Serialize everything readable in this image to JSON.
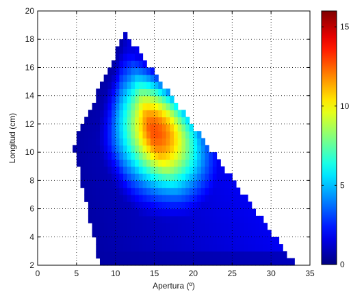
{
  "chart_data": {
    "type": "heatmap",
    "xlabel": "Apertura (º)",
    "ylabel": "Longitud (cm)",
    "xlim": [
      0,
      35
    ],
    "ylim": [
      2,
      20
    ],
    "x_ticks": [
      "0",
      "5",
      "10",
      "15",
      "20",
      "25",
      "30",
      "35"
    ],
    "y_ticks": [
      "2",
      "4",
      "6",
      "8",
      "10",
      "12",
      "14",
      "16",
      "18",
      "20"
    ],
    "grid": true,
    "colormap": "jet",
    "colorbar": {
      "range": [
        0,
        16
      ],
      "ticks": [
        "0",
        "5",
        "10",
        "15"
      ],
      "placement": "right"
    },
    "grid_step": 0.5,
    "region": {
      "apex": [
        11.2,
        18.5
      ],
      "left_edge": [
        [
          4.6,
          10.5
        ],
        [
          8.0,
          2.0
        ]
      ],
      "right_edge": [
        [
          33.2,
          2.0
        ]
      ]
    },
    "peak": {
      "x": 17.5,
      "y": 12.0,
      "value": 16
    }
  }
}
